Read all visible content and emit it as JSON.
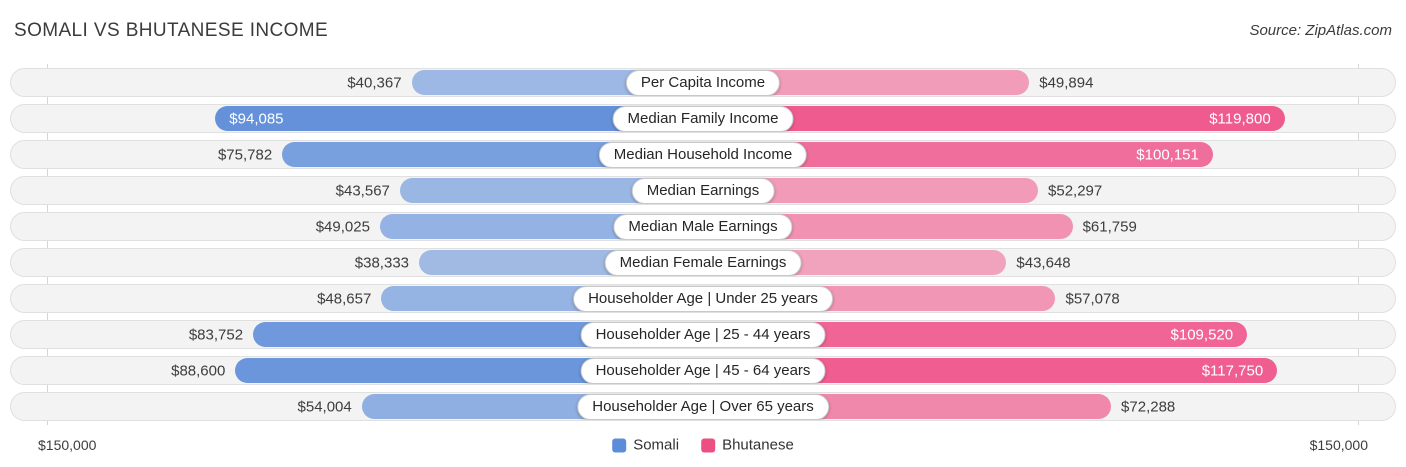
{
  "header": {
    "title": "SOMALI VS BHUTANESE INCOME",
    "source": "Source: ZipAtlas.com"
  },
  "chart_data": {
    "type": "bar",
    "variant": "butterfly-comparison",
    "title": "Somali vs Bhutanese Income",
    "axis_max": 150000,
    "axis_label_left": "$150,000",
    "axis_label_right": "$150,000",
    "grid": "edge-lines-only",
    "legend_position": "bottom-center",
    "categories": [
      "Per Capita Income",
      "Median Family Income",
      "Median Household Income",
      "Median Earnings",
      "Median Male Earnings",
      "Median Female Earnings",
      "Householder Age | Under 25 years",
      "Householder Age | 25 - 44 years",
      "Householder Age | 45 - 64 years",
      "Householder Age | Over 65 years"
    ],
    "series": [
      {
        "name": "Somali",
        "side": "left",
        "values": [
          40367,
          94085,
          75782,
          43567,
          49025,
          38333,
          48657,
          83752,
          88600,
          54004
        ],
        "value_labels": [
          "$40,367",
          "$94,085",
          "$75,782",
          "$43,567",
          "$49,025",
          "$38,333",
          "$48,657",
          "$83,752",
          "$88,600",
          "$54,004"
        ],
        "value_inside": [
          false,
          true,
          false,
          false,
          false,
          false,
          false,
          false,
          false,
          false
        ]
      },
      {
        "name": "Bhutanese",
        "side": "right",
        "values": [
          49894,
          119800,
          100151,
          52297,
          61759,
          43648,
          57078,
          109520,
          117750,
          72288
        ],
        "value_labels": [
          "$49,894",
          "$119,800",
          "$100,151",
          "$52,297",
          "$61,759",
          "$43,648",
          "$57,078",
          "$109,520",
          "$117,750",
          "$72,288"
        ],
        "value_inside": [
          false,
          true,
          true,
          false,
          false,
          false,
          false,
          true,
          true,
          false
        ]
      }
    ],
    "legend": [
      {
        "label": "Somali",
        "color": "#5b8dd9"
      },
      {
        "label": "Bhutanese",
        "color": "#ee4f82"
      }
    ]
  },
  "colors": {
    "bar_blue_base": "#447bd4",
    "bar_pink_base": "#ef568b",
    "track": "#f3f3f3",
    "track_border": "#e0e0e0",
    "gridline": "#d4d4d4"
  }
}
